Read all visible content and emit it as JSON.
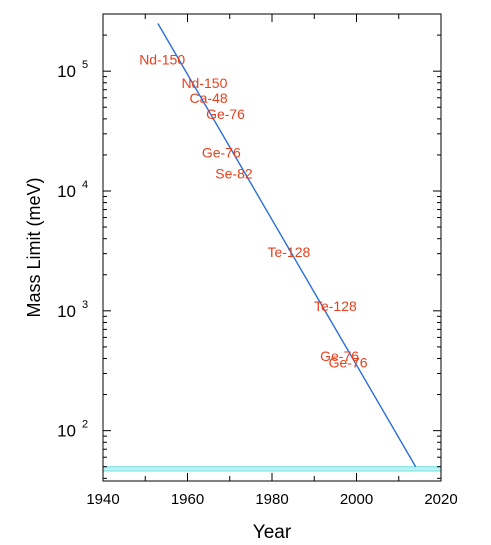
{
  "chart_data": {
    "type": "scatter",
    "xlabel": "Year",
    "ylabel": "Mass Limit (meV)",
    "xlim": [
      1940,
      2020
    ],
    "ylim": [
      38,
      300000
    ],
    "yscale": "log",
    "grid": false,
    "x_ticks": [
      1940,
      1960,
      1980,
      2000,
      2020
    ],
    "x_tick_labels": [
      "1940",
      "1960",
      "1980",
      "2000",
      "2020"
    ],
    "y_ticks": [
      100,
      1000,
      10000,
      100000
    ],
    "y_tick_labels": [
      {
        "base": "10",
        "exp": "2"
      },
      {
        "base": "10",
        "exp": "3"
      },
      {
        "base": "10",
        "exp": "4"
      },
      {
        "base": "10",
        "exp": "5"
      }
    ],
    "points": [
      {
        "label": "Nd-150",
        "x": 1954,
        "y": 125000
      },
      {
        "label": "Nd-150",
        "x": 1964,
        "y": 80000
      },
      {
        "label": "Ca-48",
        "x": 1965,
        "y": 60000
      },
      {
        "label": "Ge-76",
        "x": 1969,
        "y": 44000
      },
      {
        "label": "Ge-76",
        "x": 1968,
        "y": 21000
      },
      {
        "label": "Se-82",
        "x": 1971,
        "y": 14000
      },
      {
        "label": "Te-128",
        "x": 1984,
        "y": 3100
      },
      {
        "label": "Te-128",
        "x": 1995,
        "y": 1100
      },
      {
        "label": "Ge-76",
        "x": 1996,
        "y": 420
      },
      {
        "label": "Ge-76",
        "x": 1998,
        "y": 370
      }
    ],
    "trend_line": {
      "x": [
        1953,
        2014
      ],
      "y": [
        250000,
        50
      ]
    },
    "band": {
      "y_low": 46,
      "y_high": 50,
      "x": [
        1940,
        2020
      ]
    },
    "colors": {
      "labels": "#e8401c",
      "trend_line": "#2a6fdb",
      "band_fill": "#bff3f3",
      "band_line": "#6fe0e0",
      "axes": "#000000"
    }
  }
}
